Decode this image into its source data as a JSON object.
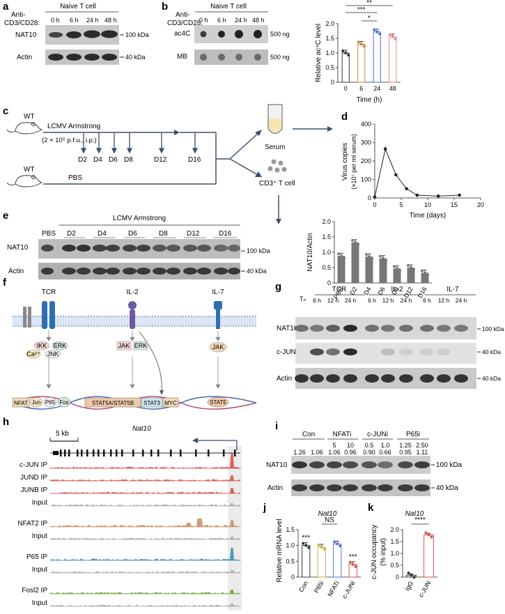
{
  "panel_labels": [
    "a",
    "b",
    "c",
    "d",
    "e",
    "f",
    "g",
    "h",
    "i",
    "j",
    "k"
  ],
  "a": {
    "treatment_line1": "Anti-",
    "treatment_line2": "CD3/CD28:",
    "header": "Naive T cell",
    "lanes": [
      "0 h",
      "6 h",
      "24 h",
      "48 h"
    ],
    "rows": [
      "NAT10",
      "Actin"
    ],
    "markers": [
      "100 kDa",
      "40 kDa"
    ]
  },
  "b": {
    "treatment_line1": "Anti-",
    "treatment_line2": "CD3/CD28:",
    "header": "Naive T cell",
    "lanes": [
      "0 h",
      "6 h",
      "24 h",
      "48 h"
    ],
    "rows": [
      "ac4C",
      "MB"
    ],
    "amounts": [
      "500 ng",
      "500 ng"
    ]
  },
  "c": {
    "mouse1": "WT",
    "mouse2": "WT",
    "infection": "LCMV Armstrong",
    "dose": "(2 × 10⁵ p.f.u., i.p.)",
    "control": "PBS",
    "days": [
      "D2",
      "D4",
      "D6",
      "D8",
      "D12",
      "D16"
    ],
    "serum": "Serum",
    "cells": "CD3⁺ T cell"
  },
  "e": {
    "header": "LCMV Armstrong",
    "lanes": [
      "PBS",
      "D2",
      "D4",
      "D6",
      "D8",
      "D12",
      "D16"
    ],
    "rows": [
      "NAT10",
      "Actin"
    ],
    "markers": [
      "100 kDa",
      "40 kDa"
    ]
  },
  "f": {
    "receptors": [
      "TCR",
      "IL-2",
      "IL-7"
    ],
    "kinases": [
      "IKK",
      "ERK",
      "Ca²⁺",
      "JNK",
      "JAK",
      "ERK",
      "JAK"
    ],
    "tfs": [
      "NFAT",
      "Jun",
      "P65",
      "Fos",
      "STAT5A/STAT5B",
      "STAT3",
      "MYC",
      "STAT5"
    ]
  },
  "g": {
    "tn": "Tₙ",
    "groups": [
      "TCR",
      "IL-2",
      "IL-7"
    ],
    "lanes": [
      "6 h",
      "12 h",
      "24 h",
      "6 h",
      "12 h",
      "24 h",
      "6 h",
      "12 h",
      "24 h"
    ],
    "rows": [
      "NAT10",
      "c-JUN",
      "Actin"
    ],
    "markers": [
      "100 kDa",
      "40 kDa",
      "40 kDa"
    ]
  },
  "h": {
    "gene": "Nat10",
    "scale": "5 kb",
    "tracks": [
      {
        "label": "c-JUN IP",
        "color": "#d9534f"
      },
      {
        "label": "JUND IP",
        "color": "#d9534f"
      },
      {
        "label": "JUNB IP",
        "color": "#d9534f"
      },
      {
        "label": "Input",
        "color": "#aaaaaa"
      },
      {
        "label": "NFAT2 IP",
        "color": "#c8926a"
      },
      {
        "label": "Input",
        "color": "#aaaaaa"
      },
      {
        "label": "P65 IP",
        "color": "#3a8fa8"
      },
      {
        "label": "Input",
        "color": "#aaaaaa"
      },
      {
        "label": "Fosl2 IP",
        "color": "#7aa33a"
      },
      {
        "label": "Input",
        "color": "#aaaaaa"
      }
    ]
  },
  "i": {
    "groups": [
      "Con",
      "NFATi",
      "c-JUNi",
      "P65i"
    ],
    "doses": [
      "",
      "",
      "5",
      "10",
      "0.5",
      "1.0",
      "1.25",
      "2.50"
    ],
    "ratios": [
      "1.26",
      "1.06",
      "1.06",
      "0.96",
      "0.90",
      "0.66",
      "0.95",
      "1.11"
    ],
    "rows": [
      "NAT10",
      "Actin"
    ],
    "markers": [
      "100 kDa",
      "40 kDa"
    ]
  },
  "chart_data": [
    {
      "panel": "b",
      "type": "bar",
      "categories": [
        "0",
        "6",
        "24",
        "48"
      ],
      "values": [
        1.0,
        1.3,
        1.72,
        1.55
      ],
      "ylabel": "Relative ac⁴C level",
      "xlabel": "Time (h)",
      "ylim": [
        0,
        2.0
      ],
      "yticks": [
        "0",
        "0.5",
        "1.0",
        "1.5",
        "2.0"
      ],
      "colors": [
        "#333333",
        "#c8853a",
        "#4a6fd6",
        "#e88a8a"
      ],
      "significance": [
        "**",
        "***",
        "*"
      ]
    },
    {
      "panel": "d",
      "type": "line",
      "x": [
        0,
        2,
        4,
        6,
        8,
        12,
        16
      ],
      "y": [
        5,
        265,
        125,
        50,
        15,
        10,
        15
      ],
      "ylabel_line1": "Virus copies",
      "ylabel_line2": "(×10⁷ per ml serum)",
      "xlabel": "Time (days)",
      "xlim": [
        0,
        20
      ],
      "ylim": [
        0,
        400
      ],
      "xticks": [
        "0",
        "5",
        "10",
        "15",
        "20"
      ],
      "yticks": [
        "0",
        "100",
        "200",
        "300",
        "400"
      ]
    },
    {
      "panel": "e",
      "type": "bar",
      "categories": [
        "PBS",
        "D2",
        "D4",
        "D6",
        "D8",
        "D12",
        "D16"
      ],
      "values": [
        0.88,
        1.32,
        0.86,
        0.8,
        0.47,
        0.5,
        0.33
      ],
      "ylabel": "NAT10/Actin",
      "ylim": [
        0,
        2.0
      ],
      "yticks": [
        "0",
        "0.5",
        "1.0",
        "1.5",
        "2.0"
      ]
    },
    {
      "panel": "j",
      "type": "bar",
      "title": "Nat10",
      "categories": [
        "Con",
        "P65i",
        "NFATi",
        "c-JUNi"
      ],
      "values": [
        1.0,
        0.95,
        1.05,
        0.4
      ],
      "ylabel": "Relative mRNA level",
      "ylim": [
        0,
        1.5
      ],
      "yticks": [
        "0",
        "0.5",
        "1.0",
        "1.5"
      ],
      "colors": [
        "#333333",
        "#c8b040",
        "#5a6fd6",
        "#d9534f"
      ],
      "significance": [
        "***",
        "NS",
        "***"
      ]
    },
    {
      "panel": "k",
      "type": "bar",
      "title": "Nat10",
      "categories": [
        "IgG",
        "c-JUN"
      ],
      "values": [
        0.08,
        1.78
      ],
      "ylabel_line1": "c-JUN occupancy",
      "ylabel_line2": "(% input)",
      "ylim": [
        0,
        2.0
      ],
      "yticks": [
        "0",
        "0.5",
        "1.0",
        "1.5",
        "2.0"
      ],
      "colors": [
        "#333333",
        "#d9534f"
      ],
      "significance": [
        "****"
      ]
    }
  ]
}
